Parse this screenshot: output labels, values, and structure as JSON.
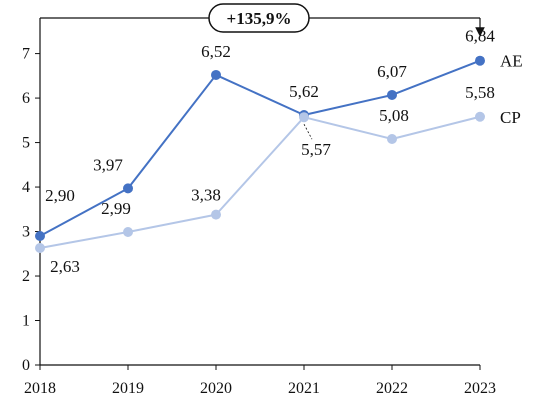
{
  "chart_data": {
    "type": "line",
    "title": "",
    "xlabel": "",
    "ylabel": "",
    "x": [
      "2018",
      "2019",
      "2020",
      "2021",
      "2022",
      "2023"
    ],
    "xlim": [
      "2018",
      "2023"
    ],
    "ylim": [
      0,
      7.8
    ],
    "y_ticks": [
      "0",
      "1",
      "2",
      "3",
      "4",
      "5",
      "6",
      "7"
    ],
    "grid": false,
    "legend": "direct labels at right end of lines",
    "series": [
      {
        "name": "AE",
        "values": [
          2.9,
          3.97,
          6.52,
          5.62,
          6.07,
          6.84
        ],
        "labels": [
          "2,90",
          "3,97",
          "6,52",
          "5,62",
          "6,07",
          "6,84"
        ],
        "color": "#4472C4"
      },
      {
        "name": "CP",
        "values": [
          2.63,
          2.99,
          3.38,
          5.57,
          5.08,
          5.58
        ],
        "labels": [
          "2,63",
          "2,99",
          "3,38",
          "5,57",
          "5,08",
          "5,58"
        ],
        "color": "#B4C6E7"
      }
    ],
    "annotations": [
      {
        "text": "+135,9%",
        "from_x": "2018",
        "to_x": "2023",
        "series": "AE"
      }
    ]
  }
}
